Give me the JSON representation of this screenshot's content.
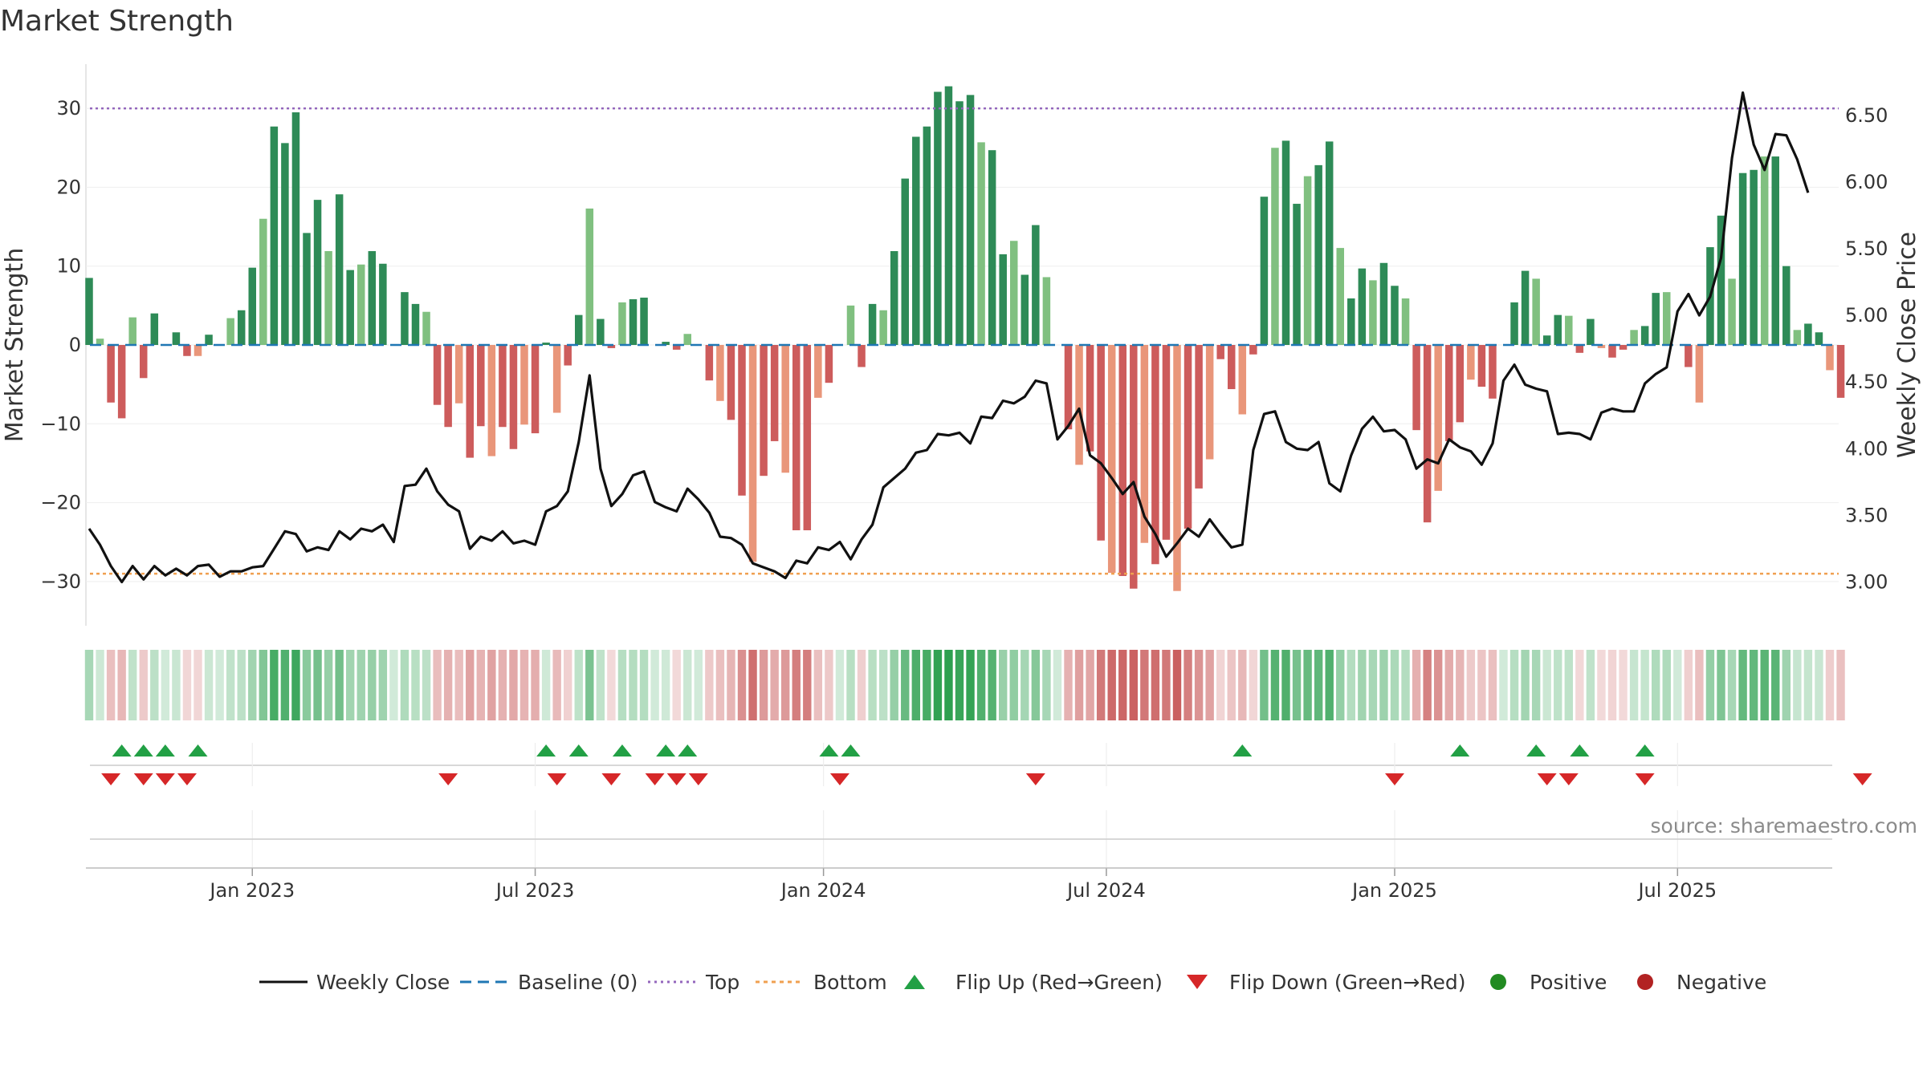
{
  "chart_data": {
    "type": "bar",
    "title": "Market Strength",
    "ylabel_left": "Market Strength",
    "ylabel_right": "Weekly Close Price",
    "left_ticks": [
      30,
      20,
      10,
      0,
      -10,
      -20,
      -30
    ],
    "left_tick_labels": [
      "30",
      "20",
      "10",
      "0",
      "−10",
      "−20",
      "−30"
    ],
    "right_ticks": [
      6.5,
      6.0,
      5.5,
      5.0,
      4.5,
      4.0,
      3.5,
      3.0
    ],
    "right_tick_labels": [
      "6.50",
      "6.00",
      "5.50",
      "5.00",
      "4.50",
      "4.00",
      "3.50",
      "3.00"
    ],
    "ylim_left": [
      -35.5,
      35
    ],
    "ylim_right": [
      2.7,
      6.82
    ],
    "x_ticks": [
      {
        "week": 15,
        "label": "Jan 2023"
      },
      {
        "week": 41,
        "label": "Jul 2023"
      },
      {
        "week": 67.5,
        "label": "Jan 2024"
      },
      {
        "week": 93.5,
        "label": "Jul 2024"
      },
      {
        "week": 120,
        "label": "Jan 2025"
      },
      {
        "week": 146,
        "label": "Jul 2025"
      }
    ],
    "top_line": 30,
    "bottom_line": -29,
    "baseline": 0,
    "strength": [
      8.5,
      0.8,
      -7.3,
      -9.3,
      3.5,
      -4.2,
      4.0,
      0,
      1.6,
      -1.4,
      -1.4,
      1.3,
      0,
      3.4,
      4.4,
      9.8,
      16,
      27.7,
      25.6,
      29.5,
      14.2,
      18.4,
      11.9,
      19.1,
      9.5,
      10.2,
      11.9,
      10.3,
      0,
      6.7,
      5.2,
      4.2,
      -7.6,
      -10.4,
      -7.4,
      -14.3,
      -10.3,
      -14.1,
      -10.4,
      -13.2,
      -10.1,
      -11.2,
      0.3,
      -8.6,
      -2.6,
      3.8,
      17.3,
      3.3,
      -0.4,
      5.4,
      5.8,
      6.0,
      0,
      0.4,
      -0.6,
      1.4,
      0,
      -4.5,
      -7.1,
      -9.5,
      -19.1,
      -27.5,
      -16.6,
      -12.2,
      -16.2,
      -23.5,
      -23.5,
      -6.7,
      -4.8,
      0,
      5.0,
      -2.8,
      5.2,
      4.4,
      11.9,
      21.1,
      26.4,
      27.7,
      32.1,
      32.8,
      30.9,
      31.7,
      25.7,
      24.7,
      11.5,
      13.2,
      8.9,
      15.2,
      8.6,
      0,
      -10.7,
      -15.2,
      -13.5,
      -24.8,
      -28.9,
      -29.3,
      -30.9,
      -25.1,
      -27.8,
      -24.7,
      -31.2,
      -23.3,
      -18.2,
      -14.5,
      -1.8,
      -5.6,
      -8.8,
      -1.2,
      18.8,
      25.0,
      25.9,
      17.9,
      21.4,
      22.8,
      25.8,
      12.3,
      5.9,
      9.7,
      8.2,
      10.4,
      7.5,
      5.9,
      -10.8,
      -22.5,
      -18.5,
      -12.2,
      -9.8,
      -4.4,
      -5.3,
      -6.8,
      0,
      5.4,
      9.4,
      8.4,
      1.2,
      3.8,
      3.7,
      -1.0,
      3.3,
      -0.4,
      -1.6,
      -0.6,
      1.9,
      2.4,
      6.6,
      6.7,
      0,
      -2.8,
      -7.3,
      12.4,
      16.4,
      8.4,
      21.8,
      22.2,
      23.9,
      23.9,
      10.0,
      1.9,
      2.7,
      1.6,
      -3.2,
      -6.7
    ],
    "close": [
      3.4,
      3.28,
      3.12,
      3.0,
      3.12,
      3.02,
      3.12,
      3.05,
      3.1,
      3.05,
      3.12,
      3.13,
      3.04,
      3.08,
      3.08,
      3.11,
      3.12,
      3.25,
      3.38,
      3.36,
      3.23,
      3.26,
      3.24,
      3.38,
      3.32,
      3.4,
      3.38,
      3.43,
      3.3,
      3.72,
      3.73,
      3.85,
      3.68,
      3.58,
      3.53,
      3.25,
      3.34,
      3.31,
      3.38,
      3.29,
      3.31,
      3.28,
      3.53,
      3.57,
      3.68,
      4.05,
      4.55,
      3.85,
      3.57,
      3.66,
      3.8,
      3.83,
      3.6,
      3.56,
      3.53,
      3.7,
      3.62,
      3.52,
      3.34,
      3.33,
      3.28,
      3.14,
      3.11,
      3.08,
      3.03,
      3.16,
      3.14,
      3.26,
      3.24,
      3.3,
      3.17,
      3.32,
      3.43,
      3.71,
      3.78,
      3.85,
      3.97,
      3.99,
      4.11,
      4.1,
      4.12,
      4.04,
      4.24,
      4.23,
      4.36,
      4.34,
      4.39,
      4.51,
      4.49,
      4.07,
      4.17,
      4.3,
      3.95,
      3.89,
      3.78,
      3.66,
      3.75,
      3.49,
      3.36,
      3.19,
      3.29,
      3.4,
      3.34,
      3.47,
      3.36,
      3.26,
      3.28,
      3.99,
      4.26,
      4.28,
      4.05,
      4.0,
      3.99,
      4.05,
      3.74,
      3.68,
      3.95,
      4.15,
      4.24,
      4.13,
      4.14,
      4.07,
      3.85,
      3.92,
      3.89,
      4.07,
      4.01,
      3.98,
      3.88,
      4.04,
      4.51,
      4.63,
      4.48,
      4.45,
      4.43,
      4.11,
      4.12,
      4.11,
      4.07,
      4.27,
      4.3,
      4.28,
      4.28,
      4.49,
      4.56,
      4.61,
      5.03,
      5.16,
      5.0,
      5.14,
      5.43,
      6.18,
      6.67,
      6.28,
      6.09,
      6.36,
      6.35,
      6.17,
      5.92
    ],
    "flip_up_weeks": [
      3,
      5,
      7,
      10,
      42,
      45,
      49,
      53,
      55,
      68,
      70,
      106,
      126,
      133,
      137,
      143
    ],
    "flip_down_weeks": [
      2,
      5,
      7,
      9,
      33,
      43,
      48,
      52,
      54,
      56,
      69,
      87,
      120,
      134,
      136,
      143,
      163
    ],
    "x_axis_label": "",
    "legend_position": "bottom-center",
    "legend": [
      "Weekly Close",
      "Baseline (0)",
      "Top",
      "Bottom",
      "Flip Up (Red→Green)",
      "Flip Down (Green→Red)",
      "Positive",
      "Negative"
    ]
  },
  "source_note": "source: sharemaestro.com",
  "colors": {
    "strong_green": "#2e8b57",
    "light_green": "#80c080",
    "strong_red": "#cd5c5c",
    "light_red": "#e9967a",
    "close_line": "#111111",
    "baseline": "#1f77b4",
    "top": "#9467bd",
    "bottom": "#f0a050",
    "flip_up": "#22a045",
    "flip_down": "#d62728",
    "positive": "#228b22",
    "negative": "#b22222"
  }
}
